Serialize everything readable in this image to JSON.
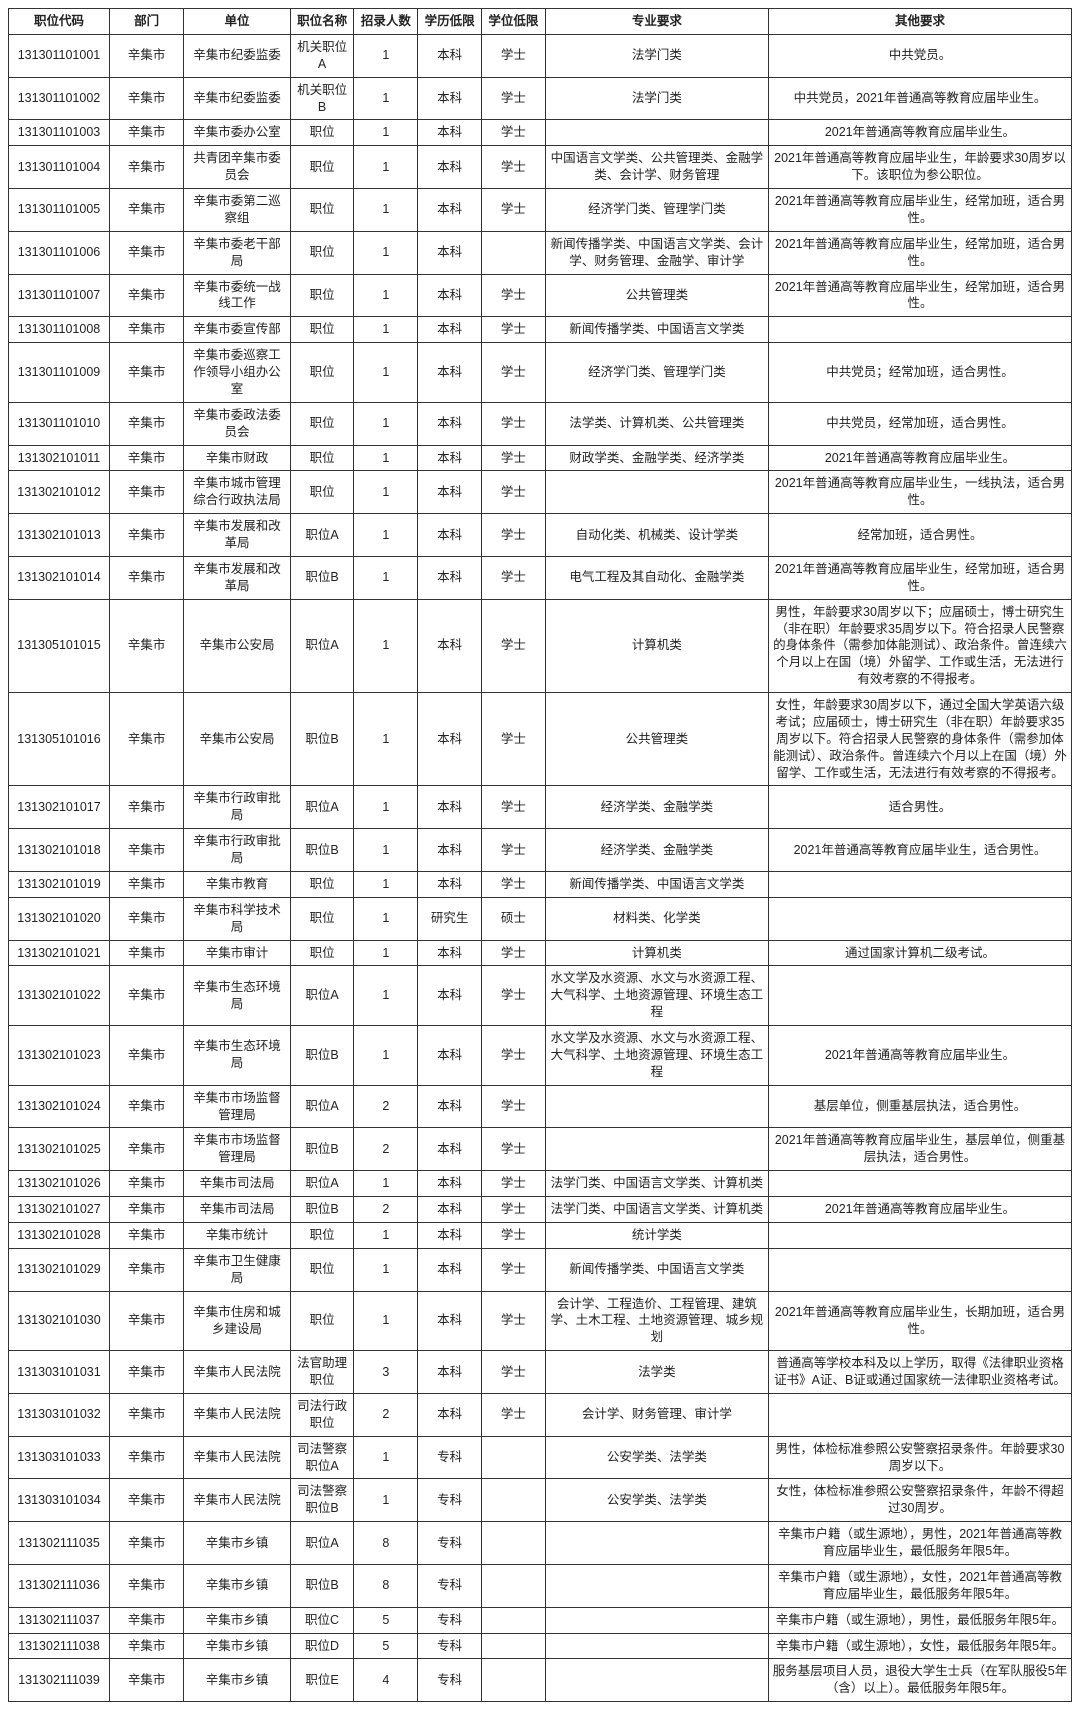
{
  "columns": [
    "职位代码",
    "部门",
    "单位",
    "职位名称",
    "招录人数",
    "学历低限",
    "学位低限",
    "专业要求",
    "其他要求"
  ],
  "rows": [
    [
      "131301101001",
      "辛集市",
      "辛集市纪委监委",
      "机关职位A",
      "1",
      "本科",
      "学士",
      "法学门类",
      "中共党员。"
    ],
    [
      "131301101002",
      "辛集市",
      "辛集市纪委监委",
      "机关职位B",
      "1",
      "本科",
      "学士",
      "法学门类",
      "中共党员，2021年普通高等教育应届毕业生。"
    ],
    [
      "131301101003",
      "辛集市",
      "辛集市委办公室",
      "职位",
      "1",
      "本科",
      "学士",
      "",
      "2021年普通高等教育应届毕业生。"
    ],
    [
      "131301101004",
      "辛集市",
      "共青团辛集市委员会",
      "职位",
      "1",
      "本科",
      "学士",
      "中国语言文学类、公共管理类、金融学类、会计学、财务管理",
      "2021年普通高等教育应届毕业生，年龄要求30周岁以下。该职位为参公职位。"
    ],
    [
      "131301101005",
      "辛集市",
      "辛集市委第二巡察组",
      "职位",
      "1",
      "本科",
      "学士",
      "经济学门类、管理学门类",
      "2021年普通高等教育应届毕业生，经常加班，适合男性。"
    ],
    [
      "131301101006",
      "辛集市",
      "辛集市委老干部局",
      "职位",
      "1",
      "本科",
      "",
      "新闻传播学类、中国语言文学类、会计学、财务管理、金融学、审计学",
      "2021年普通高等教育应届毕业生，经常加班，适合男性。"
    ],
    [
      "131301101007",
      "辛集市",
      "辛集市委统一战线工作",
      "职位",
      "1",
      "本科",
      "学士",
      "公共管理类",
      "2021年普通高等教育应届毕业生，经常加班，适合男性。"
    ],
    [
      "131301101008",
      "辛集市",
      "辛集市委宣传部",
      "职位",
      "1",
      "本科",
      "学士",
      "新闻传播学类、中国语言文学类",
      ""
    ],
    [
      "131301101009",
      "辛集市",
      "辛集市委巡察工作领导小组办公室",
      "职位",
      "1",
      "本科",
      "学士",
      "经济学门类、管理学门类",
      "中共党员；经常加班，适合男性。"
    ],
    [
      "131301101010",
      "辛集市",
      "辛集市委政法委员会",
      "职位",
      "1",
      "本科",
      "学士",
      "法学类、计算机类、公共管理类",
      "中共党员，经常加班，适合男性。"
    ],
    [
      "131302101011",
      "辛集市",
      "辛集市财政",
      "职位",
      "1",
      "本科",
      "学士",
      "财政学类、金融学类、经济学类",
      "2021年普通高等教育应届毕业生。"
    ],
    [
      "131302101012",
      "辛集市",
      "辛集市城市管理综合行政执法局",
      "职位",
      "1",
      "本科",
      "学士",
      "",
      "2021年普通高等教育应届毕业生，一线执法，适合男性。"
    ],
    [
      "131302101013",
      "辛集市",
      "辛集市发展和改革局",
      "职位A",
      "1",
      "本科",
      "学士",
      "自动化类、机械类、设计学类",
      "经常加班，适合男性。"
    ],
    [
      "131302101014",
      "辛集市",
      "辛集市发展和改革局",
      "职位B",
      "1",
      "本科",
      "学士",
      "电气工程及其自动化、金融学类",
      "2021年普通高等教育应届毕业生，经常加班，适合男性。"
    ],
    [
      "131305101015",
      "辛集市",
      "辛集市公安局",
      "职位A",
      "1",
      "本科",
      "学士",
      "计算机类",
      "男性，年龄要求30周岁以下；应届硕士，博士研究生（非在职）年龄要求35周岁以下。符合招录人民警察的身体条件（需参加体能测试）、政治条件。曾连续六个月以上在国（境）外留学、工作或生活，无法进行有效考察的不得报考。"
    ],
    [
      "131305101016",
      "辛集市",
      "辛集市公安局",
      "职位B",
      "1",
      "本科",
      "学士",
      "公共管理类",
      "女性，年龄要求30周岁以下，通过全国大学英语六级考试；应届硕士，博士研究生（非在职）年龄要求35周岁以下。符合招录人民警察的身体条件（需参加体能测试）、政治条件。曾连续六个月以上在国（境）外留学、工作或生活，无法进行有效考察的不得报考。"
    ],
    [
      "131302101017",
      "辛集市",
      "辛集市行政审批局",
      "职位A",
      "1",
      "本科",
      "学士",
      "经济学类、金融学类",
      "适合男性。"
    ],
    [
      "131302101018",
      "辛集市",
      "辛集市行政审批局",
      "职位B",
      "1",
      "本科",
      "学士",
      "经济学类、金融学类",
      "2021年普通高等教育应届毕业生，适合男性。"
    ],
    [
      "131302101019",
      "辛集市",
      "辛集市教育",
      "职位",
      "1",
      "本科",
      "学士",
      "新闻传播学类、中国语言文学类",
      ""
    ],
    [
      "131302101020",
      "辛集市",
      "辛集市科学技术局",
      "职位",
      "1",
      "研究生",
      "硕士",
      "材料类、化学类",
      ""
    ],
    [
      "131302101021",
      "辛集市",
      "辛集市审计",
      "职位",
      "1",
      "本科",
      "学士",
      "计算机类",
      "通过国家计算机二级考试。"
    ],
    [
      "131302101022",
      "辛集市",
      "辛集市生态环境局",
      "职位A",
      "1",
      "本科",
      "学士",
      "水文学及水资源、水文与水资源工程、大气科学、土地资源管理、环境生态工程",
      ""
    ],
    [
      "131302101023",
      "辛集市",
      "辛集市生态环境局",
      "职位B",
      "1",
      "本科",
      "学士",
      "水文学及水资源、水文与水资源工程、大气科学、土地资源管理、环境生态工程",
      "2021年普通高等教育应届毕业生。"
    ],
    [
      "131302101024",
      "辛集市",
      "辛集市市场监督管理局",
      "职位A",
      "2",
      "本科",
      "学士",
      "",
      "基层单位，侧重基层执法，适合男性。"
    ],
    [
      "131302101025",
      "辛集市",
      "辛集市市场监督管理局",
      "职位B",
      "2",
      "本科",
      "学士",
      "",
      "2021年普通高等教育应届毕业生，基层单位，侧重基层执法，适合男性。"
    ],
    [
      "131302101026",
      "辛集市",
      "辛集市司法局",
      "职位A",
      "1",
      "本科",
      "学士",
      "法学门类、中国语言文学类、计算机类",
      ""
    ],
    [
      "131302101027",
      "辛集市",
      "辛集市司法局",
      "职位B",
      "2",
      "本科",
      "学士",
      "法学门类、中国语言文学类、计算机类",
      "2021年普通高等教育应届毕业生。"
    ],
    [
      "131302101028",
      "辛集市",
      "辛集市统计",
      "职位",
      "1",
      "本科",
      "学士",
      "统计学类",
      ""
    ],
    [
      "131302101029",
      "辛集市",
      "辛集市卫生健康局",
      "职位",
      "1",
      "本科",
      "学士",
      "新闻传播学类、中国语言文学类",
      ""
    ],
    [
      "131302101030",
      "辛集市",
      "辛集市住房和城乡建设局",
      "职位",
      "1",
      "本科",
      "学士",
      "会计学、工程造价、工程管理、建筑学、土木工程、土地资源管理、城乡规划",
      "2021年普通高等教育应届毕业生，长期加班，适合男性。"
    ],
    [
      "131303101031",
      "辛集市",
      "辛集市人民法院",
      "法官助理职位",
      "3",
      "本科",
      "学士",
      "法学类",
      "普通高等学校本科及以上学历，取得《法律职业资格证书》A证、B证或通过国家统一法律职业资格考试。"
    ],
    [
      "131303101032",
      "辛集市",
      "辛集市人民法院",
      "司法行政职位",
      "2",
      "本科",
      "学士",
      "会计学、财务管理、审计学",
      ""
    ],
    [
      "131303101033",
      "辛集市",
      "辛集市人民法院",
      "司法警察职位A",
      "1",
      "专科",
      "",
      "公安学类、法学类",
      "男性，体检标准参照公安警察招录条件。年龄要求30周岁以下。"
    ],
    [
      "131303101034",
      "辛集市",
      "辛集市人民法院",
      "司法警察职位B",
      "1",
      "专科",
      "",
      "公安学类、法学类",
      "女性，体检标准参照公安警察招录条件，年龄不得超过30周岁。"
    ],
    [
      "131302111035",
      "辛集市",
      "辛集市乡镇",
      "职位A",
      "8",
      "专科",
      "",
      "",
      "辛集市户籍（或生源地），男性，2021年普通高等教育应届毕业生，最低服务年限5年。"
    ],
    [
      "131302111036",
      "辛集市",
      "辛集市乡镇",
      "职位B",
      "8",
      "专科",
      "",
      "",
      "辛集市户籍（或生源地），女性，2021年普通高等教育应届毕业生，最低服务年限5年。"
    ],
    [
      "131302111037",
      "辛集市",
      "辛集市乡镇",
      "职位C",
      "5",
      "专科",
      "",
      "",
      "辛集市户籍（或生源地），男性，最低服务年限5年。"
    ],
    [
      "131302111038",
      "辛集市",
      "辛集市乡镇",
      "职位D",
      "5",
      "专科",
      "",
      "",
      "辛集市户籍（或生源地），女性，最低服务年限5年。"
    ],
    [
      "131302111039",
      "辛集市",
      "辛集市乡镇",
      "职位E",
      "4",
      "专科",
      "",
      "",
      "服务基层项目人员，退役大学生士兵（在军队服役5年（含）以上）。最低服务年限5年。"
    ]
  ]
}
